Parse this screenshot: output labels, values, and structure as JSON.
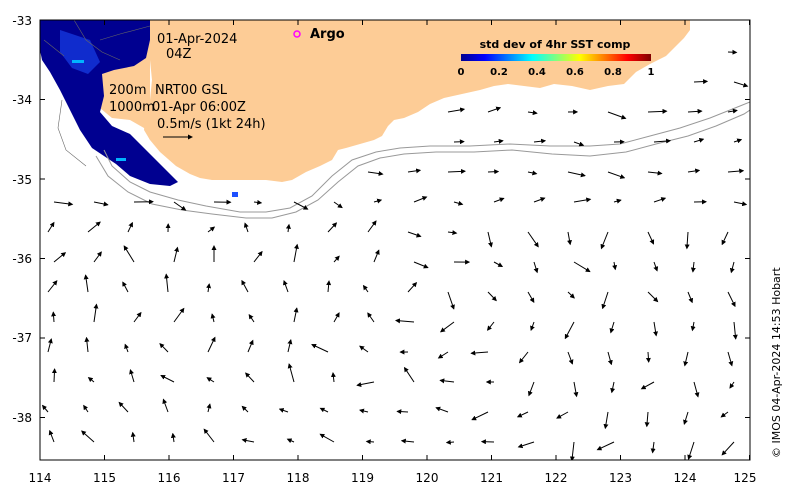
{
  "map": {
    "date_line1": "01-Apr-2024",
    "date_line2": "04Z",
    "argo_label": "Argo",
    "depth_200": "200m",
    "depth_1000": "1000m",
    "product": "NRT00 GSL",
    "product_time": "01-Apr 06:00Z",
    "scale_label": "0.5m/s (1kt 24h)",
    "credit": "© IMOS 04-Apr-2024 14:53 Hobart",
    "colors": {
      "land": "#fdcc96",
      "argo_marker": "#ff00ff",
      "sst_deep": "#000090",
      "sst_light": "#00b4ff",
      "isobath": "#999999"
    }
  },
  "colorbar": {
    "title": "std dev of 4hr SST comp",
    "ticks": [
      "0",
      "0.2",
      "0.4",
      "0.6",
      "0.8",
      "1"
    ],
    "colormap": "jet",
    "range": [
      0,
      1
    ]
  },
  "axes": {
    "x_ticks": [
      "114",
      "115",
      "116",
      "117",
      "118",
      "119",
      "120",
      "121",
      "122",
      "123",
      "124",
      "125"
    ],
    "y_ticks": [
      "-33",
      "-34",
      "-35",
      "-36",
      "-37",
      "-38"
    ],
    "x_range": [
      114,
      125
    ],
    "y_range": [
      -38.5,
      -33
    ]
  }
}
